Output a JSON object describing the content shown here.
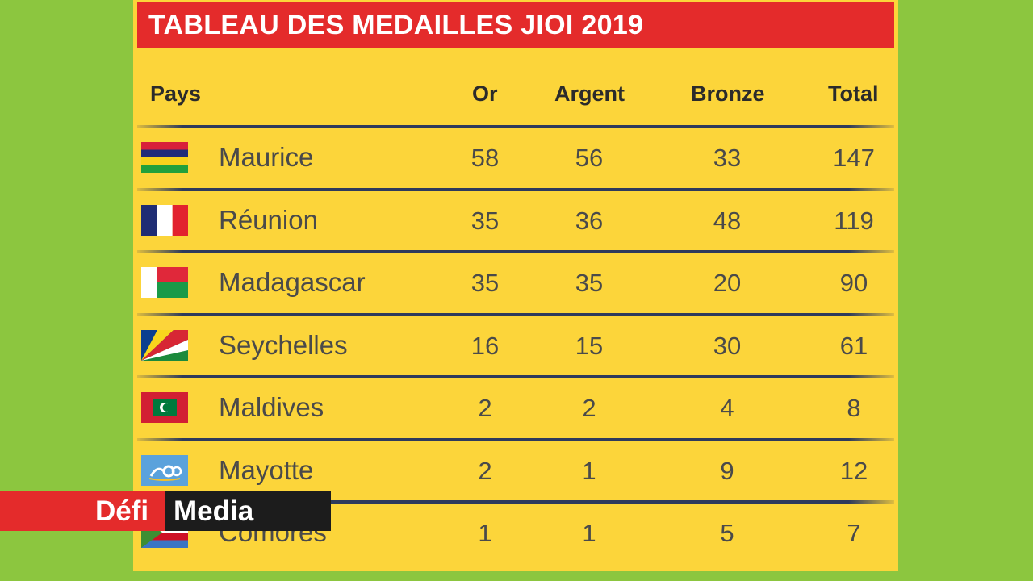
{
  "title": "TABLEAU DES MEDAILLES JIOI 2019",
  "headers": {
    "country": "Pays",
    "gold": "Or",
    "silver": "Argent",
    "bronze": "Bronze",
    "total": "Total"
  },
  "rows": [
    {
      "flag": "mauritius-flag",
      "country": "Maurice",
      "gold": "58",
      "silver": "56",
      "bronze": "33",
      "total": "147"
    },
    {
      "flag": "france-flag",
      "country": "Réunion",
      "gold": "35",
      "silver": "36",
      "bronze": "48",
      "total": "119"
    },
    {
      "flag": "madagascar-flag",
      "country": "Madagascar",
      "gold": "35",
      "silver": "35",
      "bronze": "20",
      "total": "90"
    },
    {
      "flag": "seychelles-flag",
      "country": "Seychelles",
      "gold": "16",
      "silver": "15",
      "bronze": "30",
      "total": "61"
    },
    {
      "flag": "maldives-flag",
      "country": "Maldives",
      "gold": "2",
      "silver": "2",
      "bronze": "4",
      "total": "8"
    },
    {
      "flag": "jioi-flag",
      "country": "Mayotte",
      "gold": "2",
      "silver": "1",
      "bronze": "9",
      "total": "12"
    },
    {
      "flag": "comoros-flag",
      "country": "Comores",
      "gold": "1",
      "silver": "1",
      "bronze": "5",
      "total": "7"
    }
  ],
  "watermark": {
    "part1": "Défi",
    "part2": "Media"
  },
  "colors": {
    "background": "#8cc63f",
    "board": "#fcd53a",
    "title_bar": "#e42b2b",
    "divider": "#2e3a5c"
  }
}
